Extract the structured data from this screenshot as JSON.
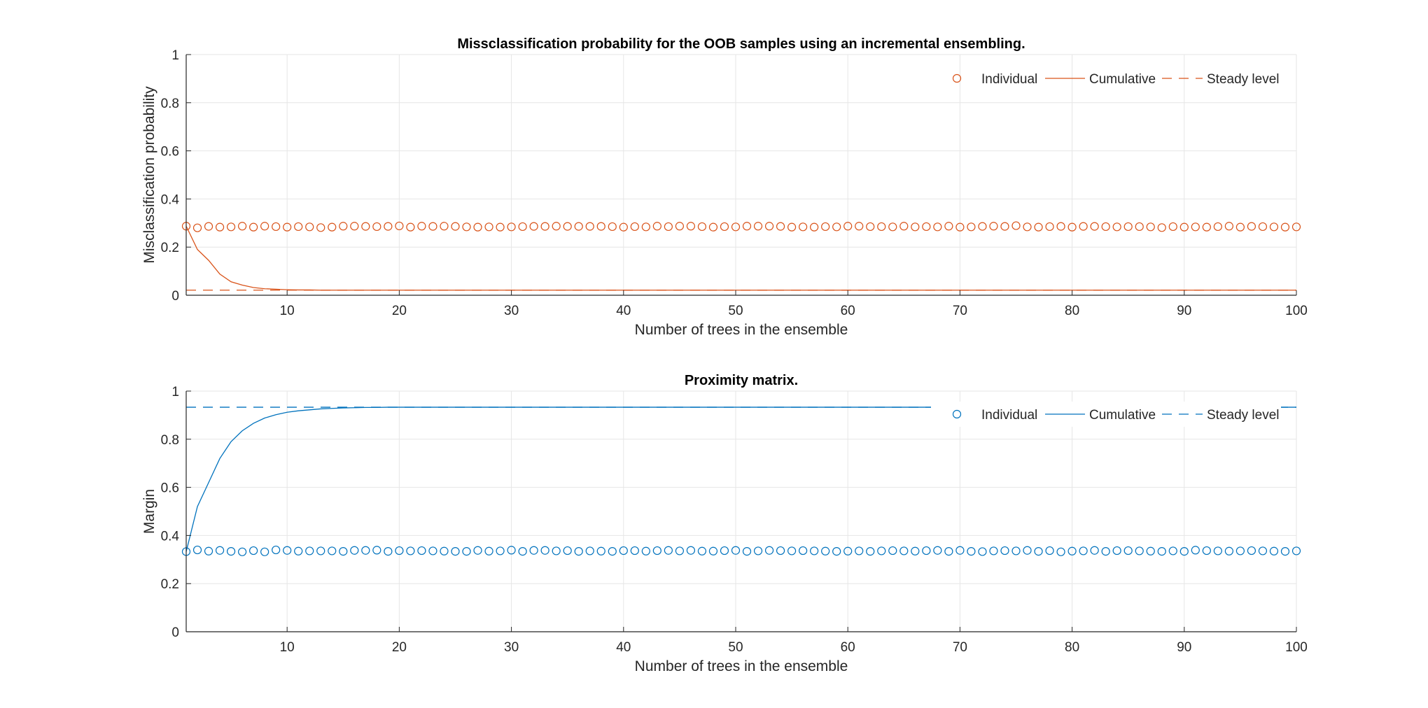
{
  "chart_data": [
    {
      "type": "scatter",
      "title": "Missclassification probability for the OOB samples using an incremental ensembling.",
      "xlabel": "Number of trees in the ensemble",
      "ylabel": "Misclassification probability",
      "xlim": [
        1,
        100
      ],
      "ylim": [
        0,
        1
      ],
      "xticks": [
        10,
        20,
        30,
        40,
        50,
        60,
        70,
        80,
        90,
        100
      ],
      "yticks": [
        0,
        0.2,
        0.4,
        0.6,
        0.8,
        1
      ],
      "xtick_labels": [
        "10",
        "20",
        "30",
        "40",
        "50",
        "60",
        "70",
        "80",
        "90",
        "100"
      ],
      "ytick_labels": [
        "0",
        "0.2",
        "0.4",
        "0.6",
        "0.8",
        "1"
      ],
      "grid": true,
      "legend_position": "top-right",
      "color": "#D95319",
      "series": [
        {
          "name": "Individual",
          "style": "markers",
          "x": [
            1,
            2,
            3,
            4,
            5,
            6,
            7,
            8,
            9,
            10,
            11,
            12,
            13,
            14,
            15,
            16,
            17,
            18,
            19,
            20,
            21,
            22,
            23,
            24,
            25,
            26,
            27,
            28,
            29,
            30,
            31,
            32,
            33,
            34,
            35,
            36,
            37,
            38,
            39,
            40,
            41,
            42,
            43,
            44,
            45,
            46,
            47,
            48,
            49,
            50,
            51,
            52,
            53,
            54,
            55,
            56,
            57,
            58,
            59,
            60,
            61,
            62,
            63,
            64,
            65,
            66,
            67,
            68,
            69,
            70,
            71,
            72,
            73,
            74,
            75,
            76,
            77,
            78,
            79,
            80,
            81,
            82,
            83,
            84,
            85,
            86,
            87,
            88,
            89,
            90,
            91,
            92,
            93,
            94,
            95,
            96,
            97,
            98,
            99,
            100
          ],
          "y": [
            0.287,
            0.28,
            0.286,
            0.283,
            0.284,
            0.287,
            0.283,
            0.287,
            0.285,
            0.283,
            0.285,
            0.284,
            0.281,
            0.283,
            0.287,
            0.287,
            0.286,
            0.285,
            0.286,
            0.288,
            0.283,
            0.287,
            0.286,
            0.287,
            0.286,
            0.284,
            0.283,
            0.284,
            0.283,
            0.284,
            0.285,
            0.286,
            0.286,
            0.287,
            0.286,
            0.286,
            0.286,
            0.286,
            0.285,
            0.283,
            0.285,
            0.284,
            0.287,
            0.285,
            0.287,
            0.287,
            0.285,
            0.283,
            0.285,
            0.284,
            0.287,
            0.287,
            0.287,
            0.286,
            0.283,
            0.284,
            0.283,
            0.285,
            0.284,
            0.287,
            0.287,
            0.285,
            0.285,
            0.284,
            0.287,
            0.284,
            0.285,
            0.284,
            0.287,
            0.283,
            0.284,
            0.286,
            0.287,
            0.286,
            0.289,
            0.284,
            0.283,
            0.285,
            0.286,
            0.283,
            0.286,
            0.286,
            0.285,
            0.284,
            0.285,
            0.285,
            0.284,
            0.281,
            0.285,
            0.283,
            0.284,
            0.283,
            0.285,
            0.287,
            0.283,
            0.286,
            0.285,
            0.284,
            0.283,
            0.284
          ]
        },
        {
          "name": "Cumulative",
          "style": "line",
          "x": [
            1,
            2,
            3,
            4,
            5,
            6,
            7,
            8,
            9,
            10,
            11,
            12,
            13,
            14,
            15,
            16,
            17,
            18,
            19,
            20,
            21,
            22,
            23,
            24,
            25,
            26,
            27,
            28,
            29,
            30,
            31,
            32,
            33,
            34,
            35,
            36,
            37,
            38,
            39,
            40,
            41,
            42,
            43,
            44,
            45,
            46,
            47,
            48,
            49,
            50,
            51,
            52,
            53,
            54,
            55,
            56,
            57,
            58,
            59,
            60,
            61,
            62,
            63,
            64,
            65,
            66,
            67,
            68,
            69,
            70,
            71,
            72,
            73,
            74,
            75,
            76,
            77,
            78,
            79,
            80,
            81,
            82,
            83,
            84,
            85,
            86,
            87,
            88,
            89,
            90,
            91,
            92,
            93,
            94,
            95,
            96,
            97,
            98,
            99,
            100
          ],
          "y": [
            0.287,
            0.19,
            0.145,
            0.088,
            0.056,
            0.042,
            0.032,
            0.027,
            0.025,
            0.023,
            0.022,
            0.022,
            0.021,
            0.021,
            0.021,
            0.021,
            0.021,
            0.021,
            0.021,
            0.021,
            0.021,
            0.021,
            0.021,
            0.021,
            0.021,
            0.021,
            0.021,
            0.021,
            0.021,
            0.021,
            0.021,
            0.021,
            0.021,
            0.021,
            0.021,
            0.021,
            0.021,
            0.021,
            0.021,
            0.021,
            0.021,
            0.021,
            0.021,
            0.021,
            0.021,
            0.021,
            0.021,
            0.021,
            0.021,
            0.021,
            0.021,
            0.021,
            0.021,
            0.021,
            0.021,
            0.021,
            0.021,
            0.021,
            0.021,
            0.021,
            0.021,
            0.021,
            0.021,
            0.021,
            0.021,
            0.021,
            0.021,
            0.021,
            0.021,
            0.021,
            0.021,
            0.021,
            0.021,
            0.021,
            0.021,
            0.021,
            0.021,
            0.021,
            0.021,
            0.021,
            0.021,
            0.021,
            0.021,
            0.021,
            0.021,
            0.021,
            0.021,
            0.021,
            0.021,
            0.021,
            0.021,
            0.021,
            0.021,
            0.021,
            0.021,
            0.021,
            0.021,
            0.021,
            0.021,
            0.021
          ]
        },
        {
          "name": "Steady level",
          "style": "dashed",
          "x": [
            1,
            100
          ],
          "y": [
            0.021,
            0.021
          ]
        }
      ]
    },
    {
      "type": "scatter",
      "title": "Proximity matrix.",
      "xlabel": "Number of trees in the ensemble",
      "ylabel": "Margin",
      "xlim": [
        1,
        100
      ],
      "ylim": [
        0,
        1
      ],
      "xticks": [
        10,
        20,
        30,
        40,
        50,
        60,
        70,
        80,
        90,
        100
      ],
      "yticks": [
        0,
        0.2,
        0.4,
        0.6,
        0.8,
        1
      ],
      "xtick_labels": [
        "10",
        "20",
        "30",
        "40",
        "50",
        "60",
        "70",
        "80",
        "90",
        "100"
      ],
      "ytick_labels": [
        "0",
        "0.2",
        "0.4",
        "0.6",
        "0.8",
        "1"
      ],
      "grid": true,
      "legend_position": "top-right",
      "color": "#0072BD",
      "series": [
        {
          "name": "Individual",
          "style": "markers",
          "x": [
            1,
            2,
            3,
            4,
            5,
            6,
            7,
            8,
            9,
            10,
            11,
            12,
            13,
            14,
            15,
            16,
            17,
            18,
            19,
            20,
            21,
            22,
            23,
            24,
            25,
            26,
            27,
            28,
            29,
            30,
            31,
            32,
            33,
            34,
            35,
            36,
            37,
            38,
            39,
            40,
            41,
            42,
            43,
            44,
            45,
            46,
            47,
            48,
            49,
            50,
            51,
            52,
            53,
            54,
            55,
            56,
            57,
            58,
            59,
            60,
            61,
            62,
            63,
            64,
            65,
            66,
            67,
            68,
            69,
            70,
            71,
            72,
            73,
            74,
            75,
            76,
            77,
            78,
            79,
            80,
            81,
            82,
            83,
            84,
            85,
            86,
            87,
            88,
            89,
            90,
            91,
            92,
            93,
            94,
            95,
            96,
            97,
            98,
            99,
            100
          ],
          "y": [
            0.333,
            0.34,
            0.335,
            0.338,
            0.334,
            0.332,
            0.337,
            0.332,
            0.34,
            0.338,
            0.335,
            0.336,
            0.336,
            0.336,
            0.334,
            0.338,
            0.338,
            0.339,
            0.334,
            0.337,
            0.336,
            0.337,
            0.336,
            0.335,
            0.334,
            0.334,
            0.338,
            0.335,
            0.336,
            0.339,
            0.334,
            0.338,
            0.338,
            0.336,
            0.337,
            0.334,
            0.336,
            0.335,
            0.334,
            0.337,
            0.337,
            0.335,
            0.337,
            0.338,
            0.336,
            0.338,
            0.335,
            0.335,
            0.337,
            0.338,
            0.334,
            0.336,
            0.338,
            0.337,
            0.336,
            0.337,
            0.336,
            0.335,
            0.334,
            0.335,
            0.336,
            0.334,
            0.336,
            0.337,
            0.336,
            0.335,
            0.337,
            0.338,
            0.334,
            0.338,
            0.334,
            0.333,
            0.336,
            0.337,
            0.336,
            0.338,
            0.334,
            0.337,
            0.332,
            0.335,
            0.336,
            0.338,
            0.334,
            0.337,
            0.337,
            0.336,
            0.335,
            0.334,
            0.336,
            0.334,
            0.339,
            0.337,
            0.336,
            0.335,
            0.336,
            0.337,
            0.336,
            0.335,
            0.334,
            0.336
          ]
        },
        {
          "name": "Cumulative",
          "style": "line",
          "x": [
            1,
            2,
            3,
            4,
            5,
            6,
            7,
            8,
            9,
            10,
            11,
            12,
            13,
            14,
            15,
            16,
            17,
            18,
            19,
            20,
            21,
            22,
            23,
            24,
            25,
            26,
            27,
            28,
            29,
            30,
            31,
            32,
            33,
            34,
            35,
            36,
            37,
            38,
            39,
            40,
            41,
            42,
            43,
            44,
            45,
            46,
            47,
            48,
            49,
            50,
            51,
            52,
            53,
            54,
            55,
            56,
            57,
            58,
            59,
            60,
            61,
            62,
            63,
            64,
            65,
            66,
            67,
            68,
            69,
            70,
            71,
            72,
            73,
            74,
            75,
            76,
            77,
            78,
            79,
            80,
            81,
            82,
            83,
            84,
            85,
            86,
            87,
            88,
            89,
            90,
            91,
            92,
            93,
            94,
            95,
            96,
            97,
            98,
            99,
            100
          ],
          "y": [
            0.333,
            0.52,
            0.62,
            0.72,
            0.79,
            0.835,
            0.866,
            0.888,
            0.902,
            0.912,
            0.918,
            0.922,
            0.926,
            0.928,
            0.93,
            0.931,
            0.932,
            0.932,
            0.933,
            0.933,
            0.933,
            0.933,
            0.933,
            0.933,
            0.933,
            0.933,
            0.933,
            0.933,
            0.933,
            0.933,
            0.933,
            0.933,
            0.933,
            0.933,
            0.933,
            0.933,
            0.933,
            0.933,
            0.933,
            0.933,
            0.933,
            0.933,
            0.933,
            0.933,
            0.933,
            0.933,
            0.933,
            0.933,
            0.933,
            0.933,
            0.933,
            0.933,
            0.933,
            0.933,
            0.933,
            0.933,
            0.933,
            0.933,
            0.933,
            0.933,
            0.933,
            0.933,
            0.933,
            0.933,
            0.933,
            0.933,
            0.933,
            0.933,
            0.933,
            0.933,
            0.933,
            0.933,
            0.933,
            0.933,
            0.933,
            0.933,
            0.933,
            0.933,
            0.933,
            0.933,
            0.933,
            0.933,
            0.933,
            0.933,
            0.933,
            0.933,
            0.933,
            0.933,
            0.933,
            0.933,
            0.933,
            0.933,
            0.933,
            0.933,
            0.933,
            0.933,
            0.933,
            0.933,
            0.933,
            0.933
          ]
        },
        {
          "name": "Steady level",
          "style": "dashed",
          "x": [
            1,
            100
          ],
          "y": [
            0.933,
            0.933
          ]
        }
      ]
    }
  ]
}
